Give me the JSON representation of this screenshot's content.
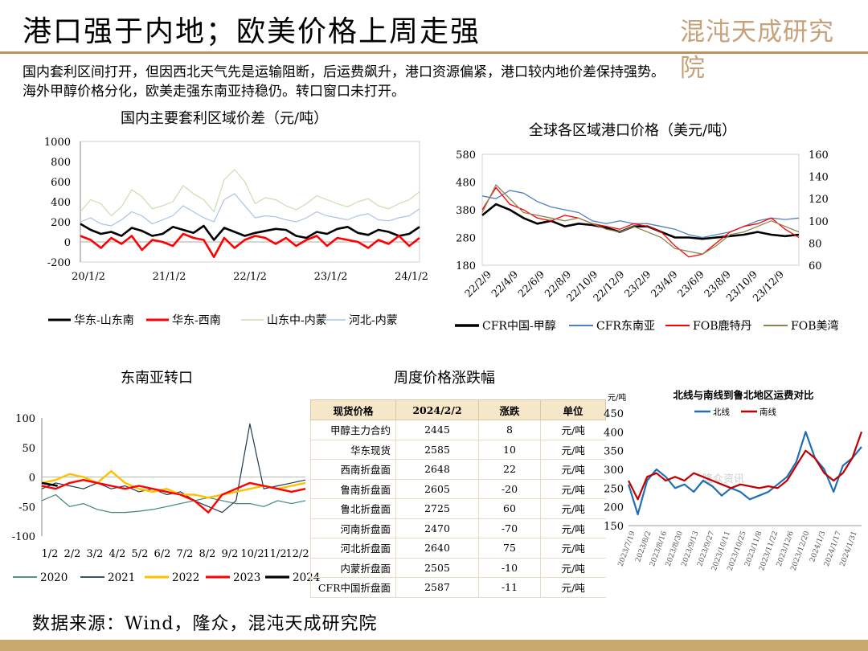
{
  "header": {
    "title": "港口强于内地；欧美价格上周走强",
    "logo_text": "混沌天成研究院"
  },
  "intro": [
    "国内套利区间打开，但因西北天气先是运输阻断，后运费飙升，港口资源偏紧，港口较内地价差保持强势。",
    "海外甲醇价格分化，欧美走强东南亚持稳仍。转口窗口未打开。"
  ],
  "source": "数据来源：Wind，隆众，混沌天成研究院",
  "colors": {
    "accent": "#b8935a",
    "bar": "#c9a86e",
    "table_header": "#f6e7c9"
  },
  "chart_data": [
    {
      "id": "spread",
      "type": "line",
      "title": "国内主要套利区域价差（元/吨）",
      "xlabel": "",
      "ylabel": "",
      "ylim": [
        -200,
        1000
      ],
      "yticks": [
        "1000",
        "800",
        "600",
        "400",
        "200",
        "0",
        "-200"
      ],
      "xticks": [
        "20/1/2",
        "21/1/2",
        "22/1/2",
        "23/1/2",
        "24/1/2"
      ],
      "legend_position": "bottom",
      "series": [
        {
          "name": "华东-山东南",
          "color": "#000000",
          "width": 2.6,
          "values": [
            180,
            120,
            80,
            100,
            60,
            140,
            110,
            60,
            80,
            150,
            120,
            90,
            160,
            20,
            140,
            100,
            60,
            90,
            110,
            130,
            120,
            60,
            40,
            100,
            80,
            130,
            150,
            90,
            70,
            120,
            100,
            60,
            80,
            150
          ]
        },
        {
          "name": "华东-西南",
          "color": "#ff0000",
          "width": 2.6,
          "values": [
            60,
            20,
            -60,
            40,
            -20,
            60,
            -80,
            20,
            0,
            -40,
            80,
            40,
            20,
            -150,
            40,
            -60,
            20,
            60,
            40,
            -20,
            40,
            -40,
            20,
            60,
            -40,
            40,
            20,
            0,
            -60,
            20,
            -20,
            60,
            -40,
            40
          ]
        },
        {
          "name": "山东中-内蒙",
          "color": "#c9ddb0",
          "width": 1.2,
          "values": [
            300,
            420,
            380,
            260,
            350,
            520,
            450,
            330,
            360,
            400,
            560,
            480,
            420,
            300,
            620,
            720,
            600,
            380,
            440,
            420,
            360,
            320,
            380,
            460,
            420,
            380,
            350,
            400,
            430,
            360,
            330,
            380,
            420,
            500
          ]
        },
        {
          "name": "河北-内蒙",
          "color": "#a9c3e6",
          "width": 1.2,
          "values": [
            200,
            240,
            180,
            160,
            220,
            300,
            260,
            180,
            220,
            260,
            360,
            300,
            240,
            200,
            420,
            480,
            360,
            240,
            260,
            250,
            220,
            200,
            240,
            300,
            260,
            240,
            220,
            260,
            280,
            220,
            210,
            240,
            260,
            330
          ]
        }
      ]
    },
    {
      "id": "global",
      "type": "line",
      "title": "全球各区域港口价格（美元/吨）",
      "xlabel": "",
      "ylabel": "",
      "ylim": [
        180,
        580
      ],
      "ylim_right": [
        60,
        160
      ],
      "yticks": [
        "580",
        "480",
        "380",
        "280",
        "180"
      ],
      "yticks_right": [
        "160",
        "140",
        "120",
        "100",
        "80",
        "60"
      ],
      "xticks": [
        "22/2/9",
        "22/4/9",
        "22/6/9",
        "22/8/9",
        "22/10/9",
        "22/12/9",
        "23/2/9",
        "23/4/9",
        "23/6/9",
        "23/8/9",
        "23/10/9",
        "23/12/9"
      ],
      "legend_position": "bottom",
      "series": [
        {
          "name": "CFR中国-甲醇",
          "color": "#000000",
          "width": 2.6,
          "values": [
            360,
            400,
            380,
            350,
            330,
            340,
            320,
            330,
            325,
            315,
            300,
            320,
            320,
            300,
            280,
            280,
            275,
            280,
            285,
            290,
            300,
            290,
            285,
            290
          ]
        },
        {
          "name": "CFR东南亚",
          "color": "#4f81bd",
          "width": 1.3,
          "values": [
            430,
            420,
            450,
            440,
            410,
            390,
            380,
            370,
            340,
            330,
            340,
            330,
            330,
            320,
            310,
            290,
            280,
            290,
            300,
            320,
            340,
            350,
            345,
            350
          ]
        },
        {
          "name": "FOB鹿特丹",
          "color": "#ff0000",
          "width": 1.3,
          "values": [
            380,
            460,
            400,
            380,
            350,
            340,
            360,
            350,
            330,
            320,
            310,
            330,
            320,
            300,
            250,
            210,
            220,
            260,
            300,
            320,
            330,
            350,
            310,
            280
          ]
        },
        {
          "name": "FOB美湾",
          "color": "#8c8450",
          "width": 1.3,
          "values": [
            370,
            470,
            420,
            370,
            360,
            350,
            340,
            350,
            330,
            310,
            300,
            320,
            300,
            280,
            240,
            230,
            220,
            250,
            290,
            300,
            320,
            340,
            320,
            300
          ]
        }
      ]
    },
    {
      "id": "sea",
      "type": "line",
      "title": "东南亚转口",
      "xlabel": "",
      "ylabel": "",
      "ylim": [
        -100,
        100
      ],
      "yticks": [
        "100",
        "50",
        "0",
        "-50",
        "-100"
      ],
      "xticks": [
        "1/2",
        "2/2",
        "3/2",
        "4/2",
        "5/2",
        "6/2",
        "7/2",
        "8/2",
        "9/2",
        "10/2",
        "11/2",
        "12/2"
      ],
      "legend_position": "bottom",
      "series": [
        {
          "name": "2020",
          "color": "#3a8a6a",
          "width": 1.2,
          "values": [
            -40,
            -30,
            -50,
            -45,
            -55,
            -60,
            -60,
            -58,
            -55,
            -50,
            -45,
            -40,
            -35,
            -40,
            -45,
            -45,
            -50,
            -40,
            -45,
            -40
          ]
        },
        {
          "name": "2021",
          "color": "#1f3b4d",
          "width": 1.2,
          "values": [
            -20,
            -10,
            -15,
            -20,
            -10,
            -20,
            -15,
            -25,
            -20,
            -30,
            -25,
            -40,
            -50,
            -60,
            -40,
            90,
            -20,
            -15,
            -10,
            -5
          ]
        },
        {
          "name": "2022",
          "color": "#ffc000",
          "width": 2.4,
          "values": [
            -10,
            -5,
            5,
            0,
            -10,
            10,
            -10,
            -20,
            -25,
            -20,
            -30,
            -30,
            -35,
            -30,
            -25,
            -20,
            -15,
            -20,
            -15,
            -10
          ]
        },
        {
          "name": "2023",
          "color": "#ff0000",
          "width": 2.4,
          "values": [
            -15,
            -20,
            -10,
            -5,
            -10,
            -15,
            -20,
            -15,
            -20,
            -25,
            -30,
            -40,
            -60,
            -30,
            -20,
            -10,
            -15,
            -20,
            -25,
            -20
          ]
        },
        {
          "name": "2024",
          "color": "#000000",
          "width": 2.6,
          "values": [
            -10,
            -15
          ]
        }
      ]
    },
    {
      "id": "weekly",
      "type": "table",
      "title": "周度价格涨跌幅",
      "columns": [
        "现货价格",
        "2024/2/2",
        "涨跌",
        "单位"
      ],
      "rows": [
        [
          "甲醇主力合约",
          "2445",
          "8",
          "元/吨"
        ],
        [
          "华东现货",
          "2585",
          "10",
          "元/吨"
        ],
        [
          "西南折盘面",
          "2648",
          "22",
          "元/吨"
        ],
        [
          "鲁南折盘面",
          "2605",
          "-20",
          "元/吨"
        ],
        [
          "鲁北折盘面",
          "2725",
          "60",
          "元/吨"
        ],
        [
          "河南折盘面",
          "2470",
          "-70",
          "元/吨"
        ],
        [
          "河北折盘面",
          "2640",
          "75",
          "元/吨"
        ],
        [
          "内蒙折盘面",
          "2505",
          "-10",
          "元/吨"
        ],
        [
          "CFR中国折盘面",
          "2587",
          "-11",
          "元/吨"
        ]
      ]
    },
    {
      "id": "freight",
      "type": "line",
      "title": "北线与南线到鲁北地区运费对比",
      "xlabel": "",
      "ylabel": "元/吨",
      "ylim": [
        150,
        450
      ],
      "yticks": [
        "450",
        "400",
        "350",
        "300",
        "250",
        "200",
        "150"
      ],
      "xticks": [
        "2023/7/19",
        "2023/8/2",
        "2023/8/16",
        "2023/8/30",
        "2023/9/13",
        "2023/9/27",
        "2023/10/11",
        "2023/10/25",
        "2023/11/8",
        "2023/11/22",
        "2023/12/6",
        "2023/12/20",
        "2024/1/3",
        "2024/1/17",
        "2024/1/31"
      ],
      "legend_position": "top",
      "watermark": "隆众资讯",
      "series": [
        {
          "name": "北线",
          "color": "#1f6fb5",
          "width": 2.2,
          "values": [
            260,
            180,
            270,
            300,
            280,
            250,
            260,
            240,
            270,
            255,
            230,
            250,
            240,
            220,
            230,
            240,
            260,
            280,
            320,
            400,
            330,
            300,
            240,
            310,
            330,
            360
          ]
        },
        {
          "name": "南线",
          "color": "#c00000",
          "width": 2.2,
          "values": [
            270,
            220,
            280,
            290,
            270,
            280,
            270,
            290,
            280,
            270,
            260,
            250,
            260,
            255,
            250,
            255,
            250,
            270,
            310,
            350,
            330,
            290,
            270,
            290,
            330,
            400
          ]
        }
      ]
    }
  ]
}
